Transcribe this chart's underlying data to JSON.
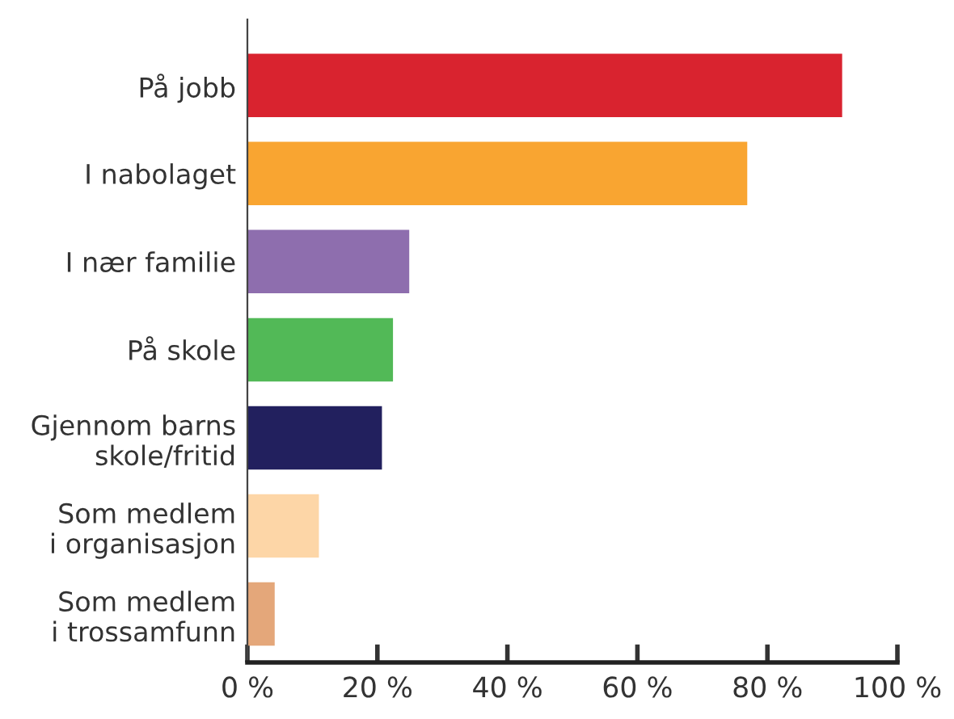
{
  "chart_data": {
    "type": "bar",
    "orientation": "horizontal",
    "categories": [
      "På jobb",
      "I nabolaget",
      "I nær familie",
      "På skole",
      "Gjennom barns\nskole/fritid",
      "Som medlem\ni organisasjon",
      "Som medlem\ni trossamfunn"
    ],
    "values": [
      91.5,
      76.9,
      24.9,
      22.4,
      20.7,
      11.0,
      4.2
    ],
    "colors": [
      "#d9232f",
      "#f9a531",
      "#8e6eae",
      "#52b957",
      "#22205e",
      "#fdd6a7",
      "#e4a77a"
    ],
    "xlim": [
      0,
      100
    ],
    "xticks": [
      {
        "value": 0,
        "label": "0 %"
      },
      {
        "value": 20,
        "label": "20 %"
      },
      {
        "value": 40,
        "label": "40 %"
      },
      {
        "value": 60,
        "label": "60 %"
      },
      {
        "value": 80,
        "label": "80 %"
      },
      {
        "value": 100,
        "label": "100 %"
      }
    ],
    "grid": false,
    "legend": false
  }
}
